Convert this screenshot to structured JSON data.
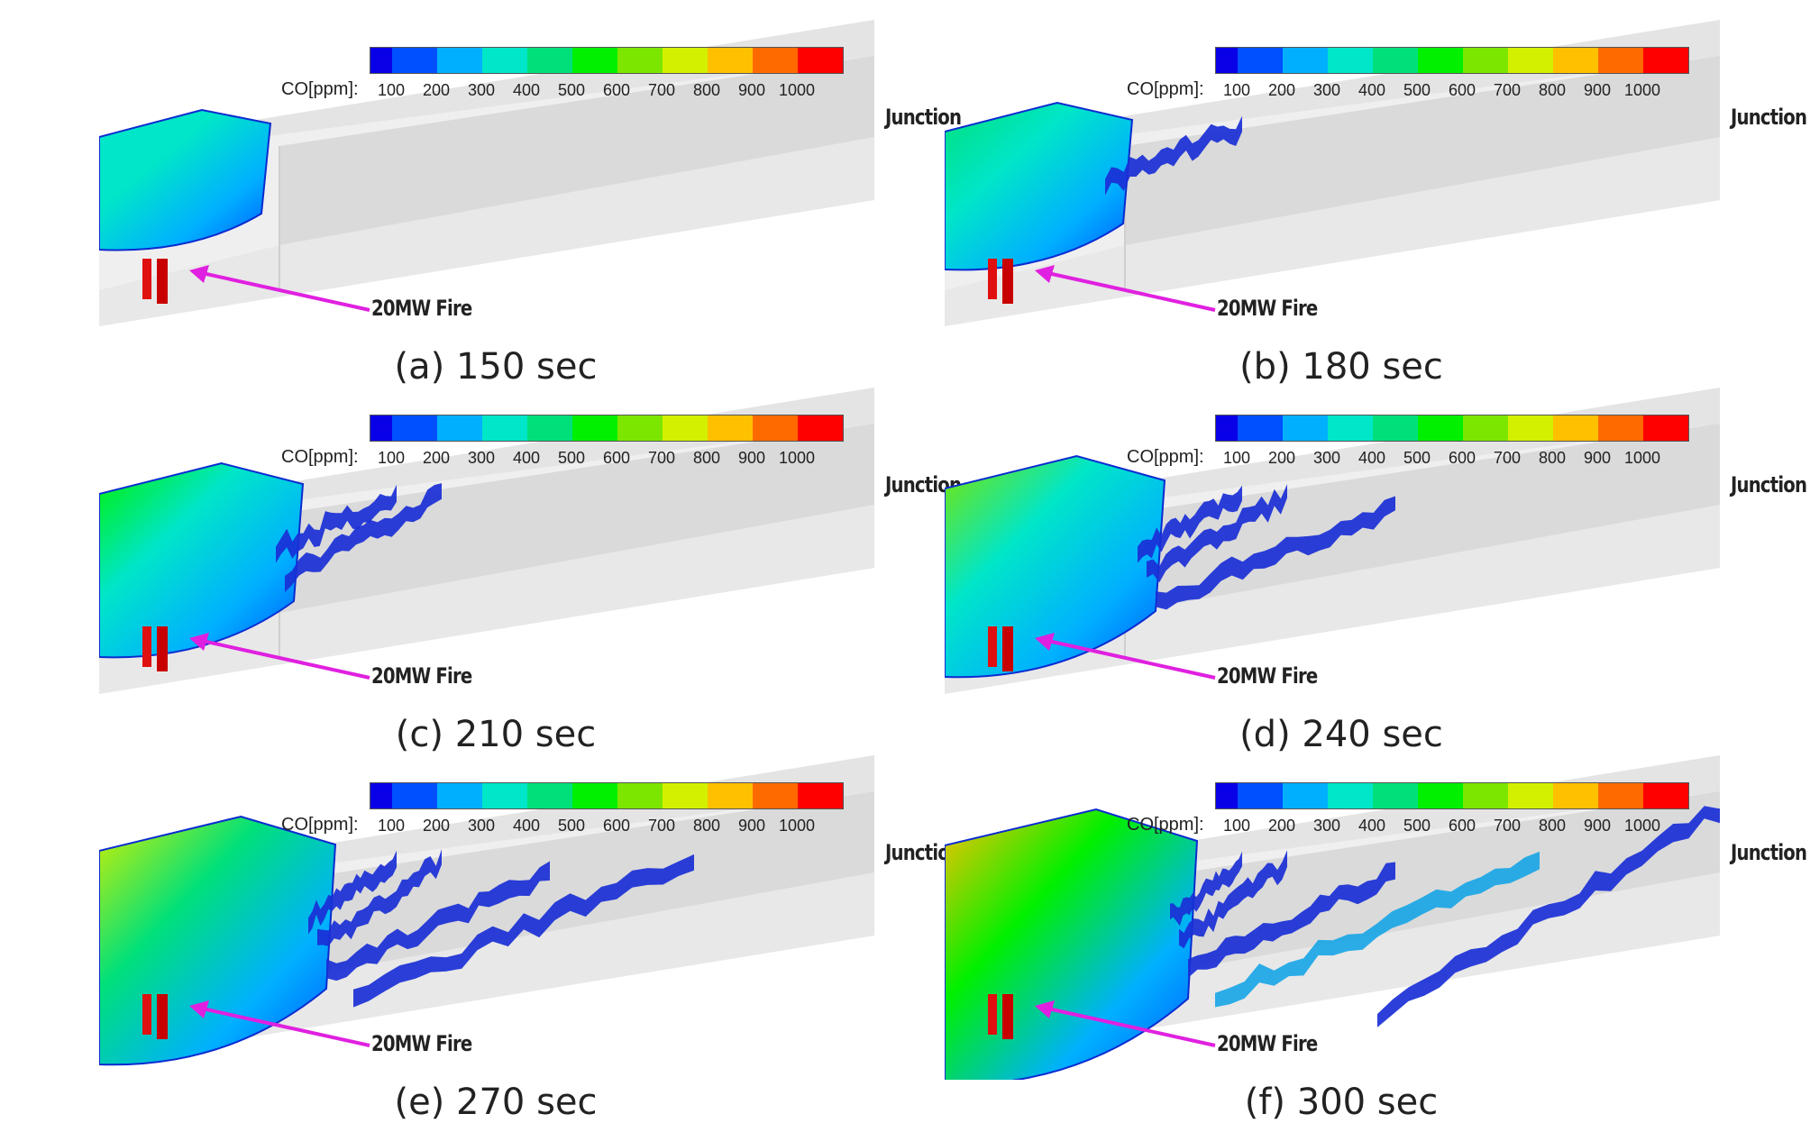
{
  "colorbar": {
    "label": "CO[ppm]:",
    "ticks": [
      "100",
      "200",
      "300",
      "400",
      "500",
      "600",
      "700",
      "800",
      "900",
      "1000"
    ],
    "colors": [
      "#0a00e8",
      "#0050ff",
      "#00b0ff",
      "#00e6c8",
      "#00e07a",
      "#00f000",
      "#7ce600",
      "#d2f000",
      "#ffc000",
      "#ff6a00",
      "#ff0000"
    ]
  },
  "labels": {
    "junction": "Junction",
    "fire": "20MW Fire"
  },
  "panels": [
    {
      "caption": "(a) 150 sec",
      "spread": 0
    },
    {
      "caption": "(b) 180 sec",
      "spread": 1
    },
    {
      "caption": "(c) 210 sec",
      "spread": 2
    },
    {
      "caption": "(d) 240 sec",
      "spread": 3
    },
    {
      "caption": "(e) 270 sec",
      "spread": 4
    },
    {
      "caption": "(f) 300 sec",
      "spread": 5
    }
  ]
}
